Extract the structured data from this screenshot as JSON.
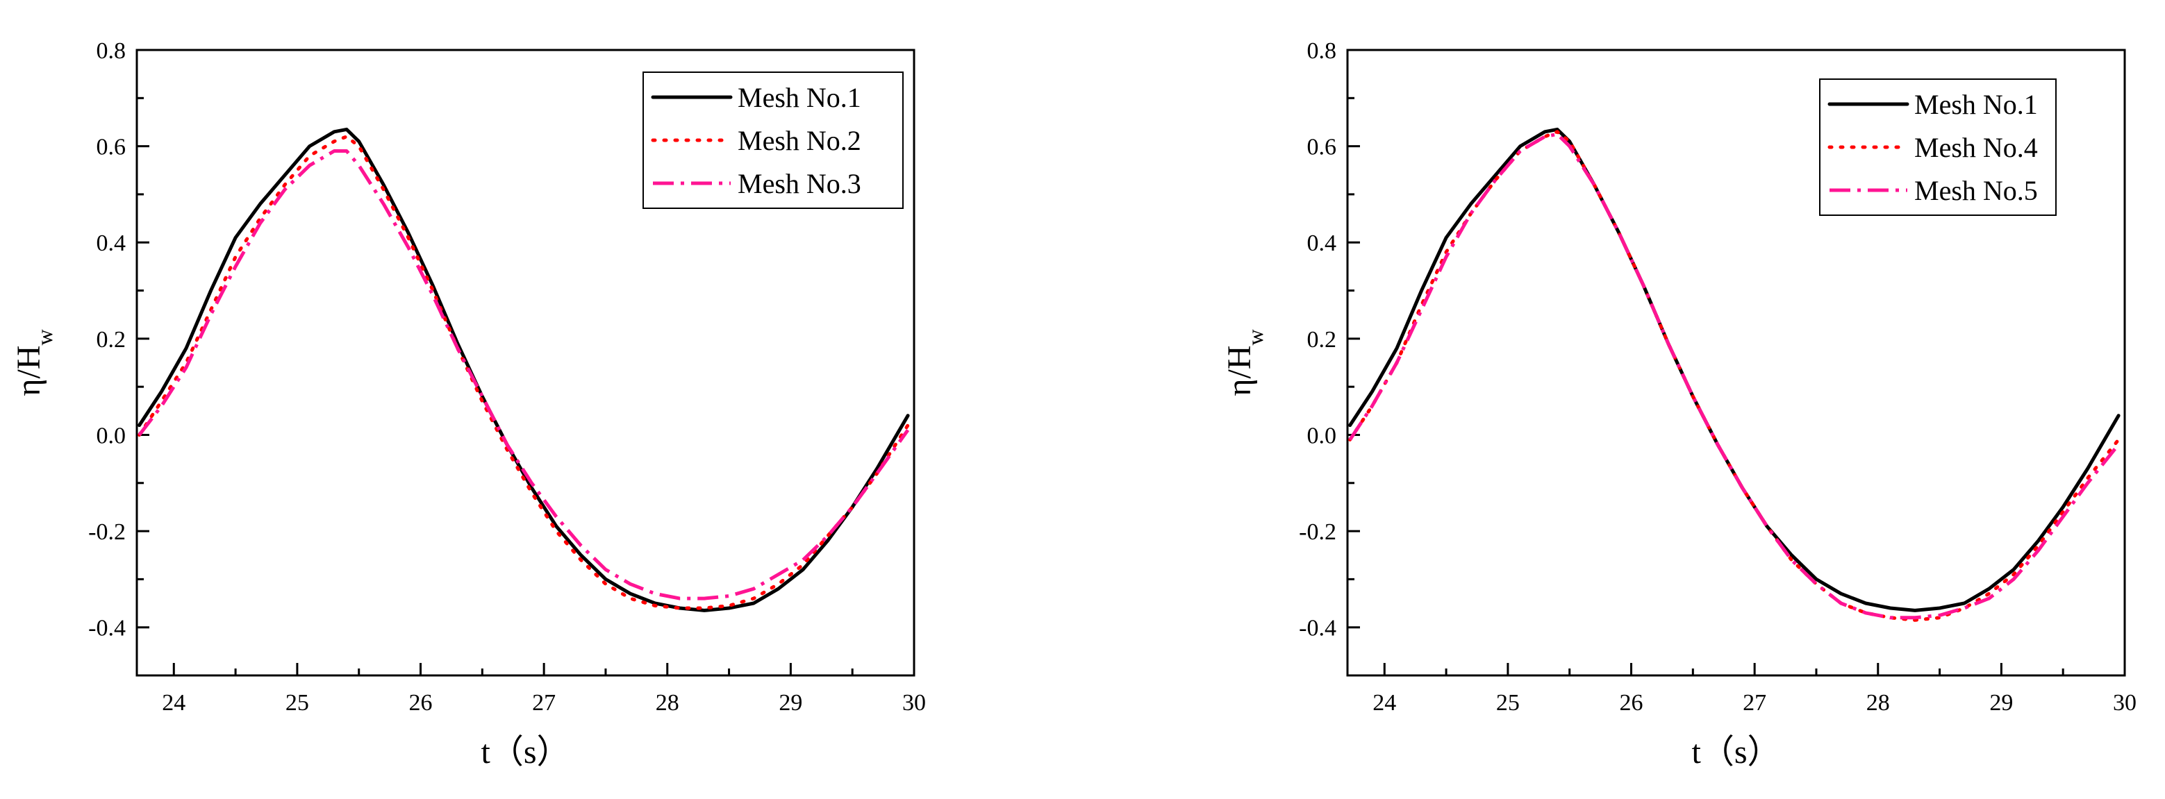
{
  "chart_data": [
    {
      "type": "line",
      "xlabel": "t（s）",
      "ylabel": "η/H",
      "ylabel_sub": "w",
      "xlim": [
        23.7,
        30.0
      ],
      "ylim": [
        -0.5,
        0.8
      ],
      "xticks": [
        24,
        25,
        26,
        27,
        28,
        29,
        30
      ],
      "yticks": [
        -0.4,
        -0.2,
        0.0,
        0.2,
        0.4,
        0.6,
        0.8
      ],
      "ytick_labels": [
        "-0.4",
        "-0.2",
        "0.0",
        "0.2",
        "0.4",
        "0.6",
        "0.8"
      ],
      "legend_position": "top-right",
      "series": [
        {
          "name": "Mesh No.1",
          "color": "#000000",
          "style": "solid",
          "x": [
            23.72,
            23.9,
            24.1,
            24.3,
            24.5,
            24.7,
            24.9,
            25.1,
            25.3,
            25.4,
            25.5,
            25.7,
            25.9,
            26.1,
            26.3,
            26.5,
            26.7,
            26.9,
            27.1,
            27.3,
            27.5,
            27.7,
            27.9,
            28.1,
            28.3,
            28.5,
            28.7,
            28.9,
            29.1,
            29.3,
            29.5,
            29.7,
            29.95
          ],
          "y": [
            0.02,
            0.09,
            0.18,
            0.3,
            0.41,
            0.48,
            0.54,
            0.6,
            0.63,
            0.635,
            0.61,
            0.52,
            0.42,
            0.31,
            0.19,
            0.08,
            -0.02,
            -0.11,
            -0.19,
            -0.25,
            -0.3,
            -0.33,
            -0.35,
            -0.36,
            -0.365,
            -0.36,
            -0.35,
            -0.32,
            -0.28,
            -0.22,
            -0.15,
            -0.07,
            0.04
          ]
        },
        {
          "name": "Mesh No.2",
          "color": "#ff0000",
          "style": "dotted",
          "x": [
            23.72,
            23.9,
            24.1,
            24.3,
            24.5,
            24.7,
            24.9,
            25.1,
            25.3,
            25.4,
            25.5,
            25.7,
            25.9,
            26.1,
            26.3,
            26.5,
            26.7,
            26.9,
            27.1,
            27.3,
            27.5,
            27.7,
            27.9,
            28.1,
            28.3,
            28.5,
            28.7,
            28.9,
            29.1,
            29.3,
            29.5,
            29.7,
            29.95
          ],
          "y": [
            0.0,
            0.07,
            0.15,
            0.26,
            0.37,
            0.45,
            0.52,
            0.58,
            0.61,
            0.62,
            0.6,
            0.51,
            0.41,
            0.3,
            0.18,
            0.07,
            -0.03,
            -0.12,
            -0.2,
            -0.26,
            -0.31,
            -0.34,
            -0.355,
            -0.36,
            -0.36,
            -0.355,
            -0.34,
            -0.31,
            -0.27,
            -0.21,
            -0.15,
            -0.08,
            0.02
          ]
        },
        {
          "name": "Mesh No.3",
          "color": "#ff1493",
          "style": "dashdot",
          "x": [
            23.72,
            23.9,
            24.1,
            24.3,
            24.5,
            24.7,
            24.9,
            25.1,
            25.3,
            25.4,
            25.5,
            25.7,
            25.9,
            26.1,
            26.3,
            26.5,
            26.7,
            26.9,
            27.1,
            27.3,
            27.5,
            27.7,
            27.9,
            28.1,
            28.3,
            28.5,
            28.7,
            28.9,
            29.1,
            29.3,
            29.5,
            29.7,
            29.95
          ],
          "y": [
            0.0,
            0.06,
            0.14,
            0.25,
            0.35,
            0.44,
            0.51,
            0.56,
            0.59,
            0.59,
            0.56,
            0.48,
            0.39,
            0.29,
            0.18,
            0.08,
            -0.02,
            -0.1,
            -0.17,
            -0.23,
            -0.28,
            -0.31,
            -0.33,
            -0.34,
            -0.34,
            -0.335,
            -0.32,
            -0.29,
            -0.26,
            -0.21,
            -0.15,
            -0.08,
            0.01
          ]
        }
      ]
    },
    {
      "type": "line",
      "xlabel": "t（s）",
      "ylabel": "η/H",
      "ylabel_sub": "w",
      "xlim": [
        23.7,
        30.0
      ],
      "ylim": [
        -0.5,
        0.8
      ],
      "xticks": [
        24,
        25,
        26,
        27,
        28,
        29,
        30
      ],
      "yticks": [
        -0.4,
        -0.2,
        0.0,
        0.2,
        0.4,
        0.6,
        0.8
      ],
      "ytick_labels": [
        "-0.4",
        "-0.2",
        "0.0",
        "0.2",
        "0.4",
        "0.6",
        "0.8"
      ],
      "legend_position": "top-right",
      "series": [
        {
          "name": "Mesh No.1",
          "color": "#000000",
          "style": "solid",
          "x": [
            23.72,
            23.9,
            24.1,
            24.3,
            24.5,
            24.7,
            24.9,
            25.1,
            25.3,
            25.4,
            25.5,
            25.7,
            25.9,
            26.1,
            26.3,
            26.5,
            26.7,
            26.9,
            27.1,
            27.3,
            27.5,
            27.7,
            27.9,
            28.1,
            28.3,
            28.5,
            28.7,
            28.9,
            29.1,
            29.3,
            29.5,
            29.7,
            29.95
          ],
          "y": [
            0.02,
            0.09,
            0.18,
            0.3,
            0.41,
            0.48,
            0.54,
            0.6,
            0.63,
            0.635,
            0.61,
            0.52,
            0.42,
            0.31,
            0.19,
            0.08,
            -0.02,
            -0.11,
            -0.19,
            -0.25,
            -0.3,
            -0.33,
            -0.35,
            -0.36,
            -0.365,
            -0.36,
            -0.35,
            -0.32,
            -0.28,
            -0.22,
            -0.15,
            -0.07,
            0.04
          ]
        },
        {
          "name": "Mesh No.4",
          "color": "#ff0000",
          "style": "dotted",
          "x": [
            23.72,
            23.9,
            24.1,
            24.3,
            24.5,
            24.7,
            24.9,
            25.1,
            25.3,
            25.4,
            25.5,
            25.7,
            25.9,
            26.1,
            26.3,
            26.5,
            26.7,
            26.9,
            27.1,
            27.3,
            27.5,
            27.7,
            27.9,
            28.1,
            28.3,
            28.5,
            28.7,
            28.9,
            29.1,
            29.3,
            29.5,
            29.7,
            29.95
          ],
          "y": [
            -0.01,
            0.06,
            0.15,
            0.27,
            0.38,
            0.46,
            0.53,
            0.59,
            0.62,
            0.63,
            0.61,
            0.52,
            0.42,
            0.31,
            0.19,
            0.08,
            -0.02,
            -0.11,
            -0.19,
            -0.26,
            -0.31,
            -0.35,
            -0.37,
            -0.38,
            -0.385,
            -0.38,
            -0.36,
            -0.33,
            -0.29,
            -0.23,
            -0.16,
            -0.09,
            -0.01
          ]
        },
        {
          "name": "Mesh No.5",
          "color": "#ff1493",
          "style": "dashdot",
          "x": [
            23.72,
            23.9,
            24.1,
            24.3,
            24.5,
            24.7,
            24.9,
            25.1,
            25.3,
            25.4,
            25.5,
            25.7,
            25.9,
            26.1,
            26.3,
            26.5,
            26.7,
            26.9,
            27.1,
            27.3,
            27.5,
            27.7,
            27.9,
            28.1,
            28.3,
            28.5,
            28.7,
            28.9,
            29.1,
            29.3,
            29.5,
            29.7,
            29.95
          ],
          "y": [
            -0.01,
            0.06,
            0.15,
            0.26,
            0.37,
            0.46,
            0.53,
            0.59,
            0.62,
            0.625,
            0.6,
            0.52,
            0.42,
            0.31,
            0.19,
            0.08,
            -0.02,
            -0.11,
            -0.19,
            -0.26,
            -0.31,
            -0.35,
            -0.37,
            -0.38,
            -0.38,
            -0.375,
            -0.36,
            -0.34,
            -0.3,
            -0.24,
            -0.17,
            -0.1,
            -0.02
          ]
        }
      ]
    }
  ]
}
